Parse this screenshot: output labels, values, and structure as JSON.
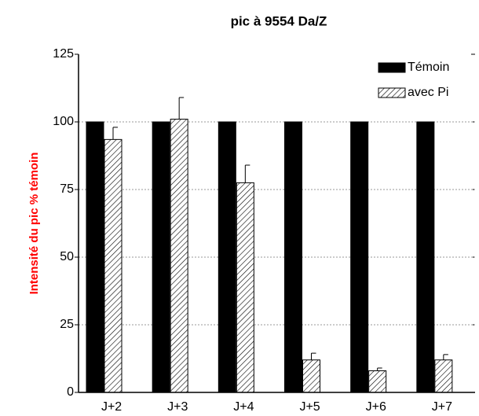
{
  "chart_data": {
    "type": "bar",
    "title": "pic à 9554 Da/Z",
    "y_label": "Intensité du pic % témoin",
    "categories": [
      "J+2",
      "J+3",
      "J+4",
      "J+5",
      "J+6",
      "J+7"
    ],
    "series": [
      {
        "name": "Témoin",
        "color": "#000000",
        "values": [
          100,
          100,
          100,
          100,
          100,
          100
        ]
      },
      {
        "name": "avec Pi",
        "color": "#000000",
        "pattern": "hatch",
        "values": [
          93.5,
          101,
          77.5,
          12,
          8,
          12
        ],
        "errors": [
          4.5,
          8,
          6.5,
          2.5,
          1,
          2
        ]
      }
    ],
    "ylim": [
      0,
      125
    ],
    "yticks": [
      0,
      25,
      50,
      75,
      100,
      125
    ],
    "grid": true,
    "legend": "top-right"
  }
}
